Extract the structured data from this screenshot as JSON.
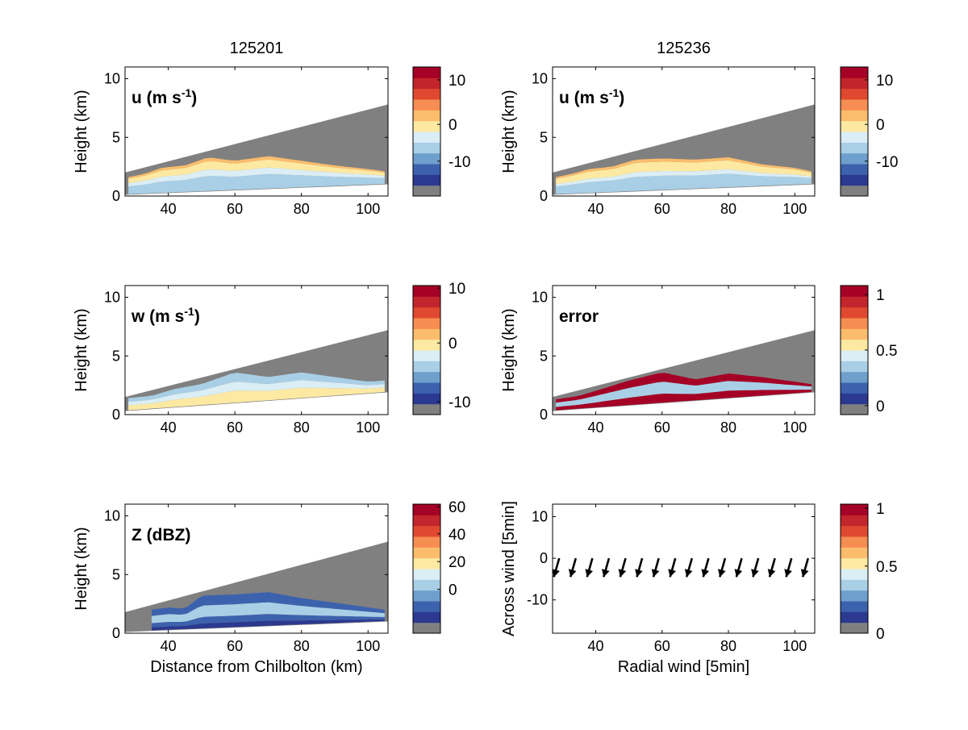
{
  "columns": [
    {
      "title": "125201"
    },
    {
      "title": "125236"
    }
  ],
  "palette": {
    "masked": "#808080",
    "cmap": [
      "#2b3990",
      "#3d62ad",
      "#6f9fcd",
      "#a9cfe6",
      "#dbeef5",
      "#fde9a1",
      "#fbbd6c",
      "#f68d52",
      "#e0492f",
      "#c2252b",
      "#a50026"
    ]
  },
  "chart_data": [
    {
      "id": "u-left",
      "type": "heatmap",
      "field": "u",
      "label": "u (m s",
      "label_sup": "-1",
      "label_tail": ")",
      "xlabel": "",
      "ylabel": "Height (km)",
      "xlim": [
        27,
        106
      ],
      "ylim": [
        0,
        11
      ],
      "xticks": [
        40,
        60,
        80,
        100
      ],
      "yticks": [
        0,
        5,
        10
      ],
      "cone": {
        "top_start": 2.0,
        "top_end": 7.8,
        "bottom_start": 0.1,
        "bottom_end": 1.0
      },
      "colorbar": {
        "ticks": [
          {
            "label": "10",
            "frac": 0.9
          },
          {
            "label": "0",
            "frac": 0.555
          },
          {
            "label": "-10",
            "frac": 0.27
          }
        ]
      },
      "echo": {
        "x_start": 28,
        "x_end": 105,
        "top": [
          [
            28,
            1.6
          ],
          [
            33,
            1.9
          ],
          [
            38,
            2.4
          ],
          [
            45,
            2.6
          ],
          [
            52,
            3.3
          ],
          [
            60,
            3.0
          ],
          [
            70,
            3.4
          ],
          [
            80,
            3.0
          ],
          [
            90,
            2.6
          ],
          [
            100,
            2.3
          ],
          [
            105,
            2.1
          ]
        ]
      },
      "bands": [
        {
          "color": 3,
          "frac": 0.45
        },
        {
          "color": 4,
          "frac": 0.2
        },
        {
          "color": 5,
          "frac": 0.25
        },
        {
          "color": 6,
          "frac": 0.1
        }
      ]
    },
    {
      "id": "u-right",
      "type": "heatmap",
      "field": "u",
      "label": "u (m s",
      "label_sup": "-1",
      "label_tail": ")",
      "xlabel": "",
      "ylabel": "Height (km)",
      "xlim": [
        27,
        106
      ],
      "ylim": [
        0,
        11
      ],
      "xticks": [
        40,
        60,
        80,
        100
      ],
      "yticks": [
        0,
        5,
        10
      ],
      "cone": {
        "top_start": 2.0,
        "top_end": 7.8,
        "bottom_start": 0.1,
        "bottom_end": 1.0
      },
      "colorbar": {
        "ticks": [
          {
            "label": "10",
            "frac": 0.9
          },
          {
            "label": "0",
            "frac": 0.555
          },
          {
            "label": "-10",
            "frac": 0.27
          }
        ]
      },
      "echo": {
        "x_start": 28,
        "x_end": 105,
        "top": [
          [
            28,
            1.6
          ],
          [
            33,
            1.9
          ],
          [
            38,
            2.3
          ],
          [
            45,
            2.5
          ],
          [
            52,
            3.1
          ],
          [
            60,
            3.2
          ],
          [
            70,
            3.1
          ],
          [
            80,
            3.3
          ],
          [
            90,
            2.7
          ],
          [
            100,
            2.4
          ],
          [
            105,
            2.1
          ]
        ]
      },
      "bands": [
        {
          "color": 3,
          "frac": 0.45
        },
        {
          "color": 4,
          "frac": 0.15
        },
        {
          "color": 5,
          "frac": 0.3
        },
        {
          "color": 6,
          "frac": 0.1
        }
      ]
    },
    {
      "id": "w-left",
      "type": "heatmap",
      "field": "w",
      "label": "w (m s",
      "label_sup": "-1",
      "label_tail": ")",
      "xlabel": "",
      "ylabel": "Height (km)",
      "xlim": [
        27,
        106
      ],
      "ylim": [
        0,
        11
      ],
      "xticks": [
        40,
        60,
        80,
        100
      ],
      "yticks": [
        0,
        5,
        10
      ],
      "cone": {
        "top_start": 1.5,
        "top_end": 7.2,
        "bottom_start": 0.3,
        "bottom_end": 1.9
      },
      "colorbar": {
        "ticks": [
          {
            "label": "10",
            "frac": 0.98
          },
          {
            "label": "0",
            "frac": 0.555
          },
          {
            "label": "-10",
            "frac": 0.1
          }
        ]
      },
      "echo": {
        "x_start": 28,
        "x_end": 105,
        "top": [
          [
            28,
            1.4
          ],
          [
            35,
            1.6
          ],
          [
            42,
            2.2
          ],
          [
            50,
            2.6
          ],
          [
            60,
            3.6
          ],
          [
            70,
            3.2
          ],
          [
            80,
            3.6
          ],
          [
            90,
            3.2
          ],
          [
            100,
            2.8
          ],
          [
            105,
            2.9
          ]
        ]
      },
      "bands": [
        {
          "color": 5,
          "frac": 0.4
        },
        {
          "color": 4,
          "frac": 0.3
        },
        {
          "color": 3,
          "frac": 0.3
        }
      ]
    },
    {
      "id": "error-right",
      "type": "heatmap",
      "field": "error",
      "label": "error",
      "label_sup": "",
      "label_tail": "",
      "xlabel": "",
      "ylabel": "Height (km)",
      "xlim": [
        27,
        106
      ],
      "ylim": [
        0,
        11
      ],
      "xticks": [
        40,
        60,
        80,
        100
      ],
      "yticks": [
        0,
        5,
        10
      ],
      "cone": {
        "top_start": 1.5,
        "top_end": 7.2,
        "bottom_start": 0.3,
        "bottom_end": 1.9
      },
      "colorbar": {
        "ticks": [
          {
            "label": "1",
            "frac": 0.93
          },
          {
            "label": "0.5",
            "frac": 0.5
          },
          {
            "label": "0",
            "frac": 0.07
          }
        ]
      },
      "echo": {
        "x_start": 28,
        "x_end": 105,
        "top": [
          [
            28,
            1.3
          ],
          [
            35,
            1.6
          ],
          [
            42,
            2.2
          ],
          [
            50,
            2.9
          ],
          [
            60,
            3.6
          ],
          [
            70,
            3.0
          ],
          [
            80,
            3.5
          ],
          [
            90,
            3.2
          ],
          [
            100,
            2.8
          ],
          [
            105,
            2.6
          ]
        ]
      },
      "bands": [
        {
          "color": 10,
          "frac": 0.3
        },
        {
          "color": 3,
          "frac": 0.4
        },
        {
          "color": 10,
          "frac": 0.3
        }
      ]
    },
    {
      "id": "z-left",
      "type": "heatmap",
      "field": "Z",
      "label": "Z (dBZ)",
      "label_sup": "",
      "label_tail": "",
      "xlabel": "Distance from Chilbolton (km)",
      "ylabel": "Height (km)",
      "xlim": [
        27,
        106
      ],
      "ylim": [
        0,
        11
      ],
      "xticks": [
        40,
        60,
        80,
        100
      ],
      "yticks": [
        0,
        5,
        10
      ],
      "cone": {
        "top_start": 1.8,
        "top_end": 7.8,
        "bottom_start": 0.1,
        "bottom_end": 1.0
      },
      "colorbar": {
        "ticks": [
          {
            "label": "60",
            "frac": 0.98
          },
          {
            "label": "40",
            "frac": 0.77
          },
          {
            "label": "20",
            "frac": 0.555
          },
          {
            "label": "0",
            "frac": 0.34
          }
        ]
      },
      "echo": {
        "x_start": 35,
        "x_end": 105,
        "top": [
          [
            35,
            2.0
          ],
          [
            40,
            2.2
          ],
          [
            45,
            2.1
          ],
          [
            50,
            3.2
          ],
          [
            60,
            3.3
          ],
          [
            70,
            3.5
          ],
          [
            80,
            3.0
          ],
          [
            90,
            2.6
          ],
          [
            100,
            2.2
          ],
          [
            105,
            2.0
          ]
        ]
      },
      "bands": [
        {
          "color": 0,
          "frac": 0.15
        },
        {
          "color": 1,
          "frac": 0.2
        },
        {
          "color": 3,
          "frac": 0.35
        },
        {
          "color": 1,
          "frac": 0.3
        }
      ]
    },
    {
      "id": "quiver-right",
      "type": "scatter",
      "field": "vectors",
      "label": "",
      "label_sup": "",
      "label_tail": "",
      "xlabel": "Radial wind [5min]",
      "ylabel": "Across wind [5min]",
      "xlim": [
        27,
        106
      ],
      "ylim": [
        -18,
        13
      ],
      "xticks": [
        40,
        60,
        80,
        100
      ],
      "yticks": [
        -10,
        0,
        10
      ],
      "colorbar": {
        "ticks": [
          {
            "label": "1",
            "frac": 0.97
          },
          {
            "label": "0.5",
            "frac": 0.52
          },
          {
            "label": "0",
            "frac": 0.0
          }
        ]
      },
      "arrows": [
        {
          "x": 29,
          "dx": -1.6,
          "dy": -4.5
        },
        {
          "x": 34,
          "dx": -1.6,
          "dy": -4.5
        },
        {
          "x": 39,
          "dx": -1.6,
          "dy": -4.5
        },
        {
          "x": 44,
          "dx": -1.6,
          "dy": -4.5
        },
        {
          "x": 49,
          "dx": -1.6,
          "dy": -4.5
        },
        {
          "x": 54,
          "dx": -1.6,
          "dy": -4.5
        },
        {
          "x": 59,
          "dx": -1.6,
          "dy": -4.5
        },
        {
          "x": 64,
          "dx": -1.6,
          "dy": -4.5
        },
        {
          "x": 69,
          "dx": -1.6,
          "dy": -4.5
        },
        {
          "x": 74,
          "dx": -1.6,
          "dy": -4.5
        },
        {
          "x": 79,
          "dx": -1.6,
          "dy": -4.5
        },
        {
          "x": 84,
          "dx": -1.6,
          "dy": -4.5
        },
        {
          "x": 89,
          "dx": -1.6,
          "dy": -4.5
        },
        {
          "x": 94,
          "dx": -1.6,
          "dy": -4.5
        },
        {
          "x": 99,
          "dx": -1.6,
          "dy": -4.5
        },
        {
          "x": 104,
          "dx": -1.6,
          "dy": -4.5
        }
      ]
    }
  ]
}
